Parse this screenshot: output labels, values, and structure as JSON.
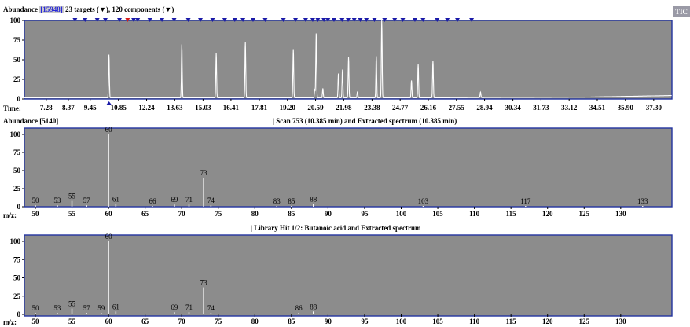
{
  "tic_panel": {
    "ylabel": "Abundance",
    "abundance_badge": "[15948]",
    "targets_text": "23 targets",
    "components_text": ", 120 components",
    "x_prefix": "Time:",
    "tic_tab": "TIC"
  },
  "scan_panel": {
    "ylabel": "Abundance [5140]",
    "title": "| Scan 753 (10.385 min) and  Extracted spectrum (10.385 min)",
    "x_prefix": "m/z:"
  },
  "library_panel": {
    "title": "| Library Hit 1/2: Butanoic acid and  Extracted spectrum",
    "x_prefix": "m/z:"
  },
  "colors": {
    "plot_bg": "#8c8c8c",
    "frame": "#2233a0",
    "trace": "#ffffff",
    "marker": "#1a1aa8",
    "marker_selected": "#d81a1a"
  },
  "chart_data": [
    {
      "type": "line",
      "title": "Abundance",
      "xlabel": "Time:",
      "ylim": [
        0,
        100
      ],
      "yticks": [
        0,
        25,
        50,
        75,
        100
      ],
      "xlim": [
        6.2,
        38.2
      ],
      "xticks": [
        "7.28",
        "8.37",
        "9.45",
        "10.85",
        "12.24",
        "13.63",
        "15.03",
        "16.41",
        "17.81",
        "19.20",
        "20.59",
        "21.98",
        "23.38",
        "24.77",
        "26.16",
        "27.55",
        "28.94",
        "30.34",
        "31.73",
        "33.12",
        "34.51",
        "35.90",
        "37.30"
      ],
      "peaks": [
        {
          "x": 10.38,
          "y": 55
        },
        {
          "x": 13.98,
          "y": 68
        },
        {
          "x": 15.68,
          "y": 57
        },
        {
          "x": 17.12,
          "y": 71
        },
        {
          "x": 19.49,
          "y": 62
        },
        {
          "x": 20.62,
          "y": 82
        },
        {
          "x": 21.72,
          "y": 31
        },
        {
          "x": 21.92,
          "y": 36
        },
        {
          "x": 22.22,
          "y": 52
        },
        {
          "x": 23.59,
          "y": 53
        },
        {
          "x": 23.86,
          "y": 100
        },
        {
          "x": 25.33,
          "y": 22
        },
        {
          "x": 25.66,
          "y": 43
        },
        {
          "x": 26.39,
          "y": 47
        },
        {
          "x": 20.55,
          "y": 10
        },
        {
          "x": 20.95,
          "y": 12
        },
        {
          "x": 22.66,
          "y": 8
        },
        {
          "x": 28.74,
          "y": 7
        }
      ],
      "target_markers": [
        8.7,
        9.2,
        9.8,
        10.2,
        10.9,
        11.3,
        11.6,
        11.8,
        12.4,
        13.0,
        13.6,
        14.3,
        14.9,
        15.5,
        16.1,
        16.6,
        17.0,
        17.5,
        18.1,
        19.0,
        19.6,
        20.1,
        20.45,
        20.7,
        21.0,
        21.2,
        21.5,
        21.9,
        22.2,
        22.5,
        22.8,
        23.1,
        23.5,
        24.0,
        24.5,
        24.9,
        25.5,
        25.9,
        26.6,
        27.1,
        27.6,
        28.3
      ]
    },
    {
      "type": "bar",
      "title": "| Scan 753 (10.385 min) and  Extracted spectrum (10.385 min)",
      "xlabel": "m/z:",
      "xlim": [
        48.5,
        137
      ],
      "ylim": [
        0,
        100
      ],
      "yticks": [
        0,
        25,
        50,
        75,
        100
      ],
      "xticks": [
        50,
        55,
        60,
        65,
        70,
        75,
        80,
        85,
        90,
        95,
        100,
        105,
        110,
        115,
        120,
        125,
        130
      ],
      "peaks": [
        {
          "mz": 50,
          "y": 2
        },
        {
          "mz": 53,
          "y": 2
        },
        {
          "mz": 55,
          "y": 8
        },
        {
          "mz": 57,
          "y": 2
        },
        {
          "mz": 60,
          "y": 100
        },
        {
          "mz": 61,
          "y": 4
        },
        {
          "mz": 66,
          "y": 1
        },
        {
          "mz": 69,
          "y": 3
        },
        {
          "mz": 71,
          "y": 3
        },
        {
          "mz": 73,
          "y": 40
        },
        {
          "mz": 74,
          "y": 2
        },
        {
          "mz": 83,
          "y": 1
        },
        {
          "mz": 85,
          "y": 1
        },
        {
          "mz": 88,
          "y": 4
        },
        {
          "mz": 103,
          "y": 1
        },
        {
          "mz": 117,
          "y": 1
        },
        {
          "mz": 133,
          "y": 1
        }
      ]
    },
    {
      "type": "bar",
      "title": "| Library Hit 1/2: Butanoic acid and  Extracted spectrum",
      "xlabel": "m/z:",
      "xlim": [
        48.5,
        137
      ],
      "ylim": [
        0,
        100
      ],
      "yticks": [
        0,
        25,
        50,
        75,
        100
      ],
      "xticks": [
        50,
        55,
        60,
        65,
        70,
        75,
        80,
        85,
        90,
        95,
        100,
        105,
        110,
        115,
        120,
        125,
        130
      ],
      "peaks": [
        {
          "mz": 50,
          "y": 2
        },
        {
          "mz": 53,
          "y": 2
        },
        {
          "mz": 55,
          "y": 8
        },
        {
          "mz": 57,
          "y": 2
        },
        {
          "mz": 59,
          "y": 2
        },
        {
          "mz": 60,
          "y": 100
        },
        {
          "mz": 61,
          "y": 4
        },
        {
          "mz": 69,
          "y": 3
        },
        {
          "mz": 71,
          "y": 3
        },
        {
          "mz": 73,
          "y": 37
        },
        {
          "mz": 74,
          "y": 2
        },
        {
          "mz": 86,
          "y": 2
        },
        {
          "mz": 88,
          "y": 4
        }
      ]
    }
  ]
}
